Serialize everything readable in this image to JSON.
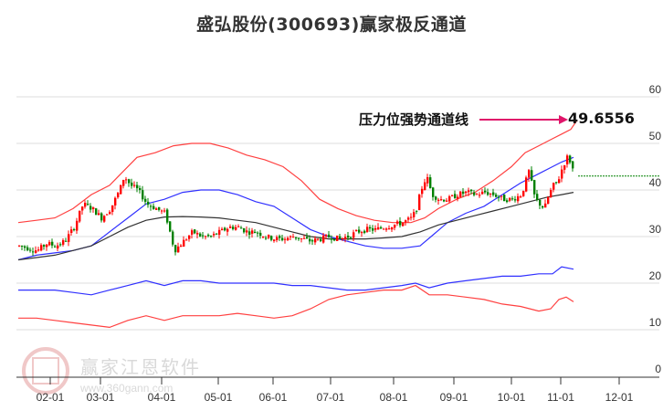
{
  "title": "盛弘股份(300693)赢家极反通道",
  "annotation": {
    "label": "压力位强势通道线",
    "value": "49.6556",
    "arrow_color": "#e0156a"
  },
  "watermark": {
    "brand": "赢家江恩软件",
    "url": "www.360gann.com",
    "logo_chars": [
      "江",
      "赢",
      "恩",
      "家"
    ]
  },
  "colors": {
    "up": "#ff0000",
    "down": "#008000",
    "outer_band": "#ff4040",
    "inner_band": "#3030ff",
    "mid_line": "#333333",
    "grid": "#dddddd",
    "last_price_line": "#008000"
  },
  "chart_data": {
    "type": "candlestick",
    "title": "盛弘股份(300693)赢家极反通道",
    "xlabel": "",
    "ylabel": "",
    "ylim": [
      0,
      60
    ],
    "y_ticks": [
      0,
      10,
      20,
      30,
      40,
      50,
      60
    ],
    "x_ticks": [
      "02-01",
      "03-01",
      "04-01",
      "05-01",
      "06-01",
      "07-01",
      "08-01",
      "09-01",
      "10-01",
      "11-01",
      "12-01"
    ],
    "grid": true,
    "legend": "none",
    "annotations": [
      {
        "text": "压力位强势通道线",
        "value": 49.6556,
        "type": "arrow"
      }
    ],
    "last_close": 43,
    "price_path": [
      [
        20,
        28
      ],
      [
        30,
        27.5
      ],
      [
        40,
        27
      ],
      [
        50,
        28.5
      ],
      [
        60,
        28
      ],
      [
        70,
        29
      ],
      [
        80,
        32
      ],
      [
        90,
        37
      ],
      [
        100,
        36
      ],
      [
        110,
        34
      ],
      [
        120,
        36
      ],
      [
        130,
        40
      ],
      [
        135,
        43
      ],
      [
        142,
        41
      ],
      [
        150,
        40
      ],
      [
        160,
        37
      ],
      [
        170,
        36
      ],
      [
        180,
        35
      ],
      [
        185,
        31
      ],
      [
        190,
        27
      ],
      [
        200,
        29
      ],
      [
        210,
        31
      ],
      [
        220,
        30
      ],
      [
        230,
        30
      ],
      [
        240,
        31
      ],
      [
        250,
        32
      ],
      [
        260,
        32
      ],
      [
        270,
        31
      ],
      [
        280,
        31
      ],
      [
        290,
        30
      ],
      [
        300,
        29.5
      ],
      [
        310,
        29.5
      ],
      [
        320,
        30
      ],
      [
        330,
        29.5
      ],
      [
        340,
        29
      ],
      [
        350,
        29.5
      ],
      [
        360,
        30
      ],
      [
        370,
        29.5
      ],
      [
        380,
        30
      ],
      [
        390,
        31
      ],
      [
        400,
        31.5
      ],
      [
        410,
        31.5
      ],
      [
        420,
        32
      ],
      [
        430,
        32.5
      ],
      [
        440,
        33
      ],
      [
        450,
        34
      ],
      [
        455,
        36
      ],
      [
        460,
        40
      ],
      [
        466,
        43
      ],
      [
        472,
        39
      ],
      [
        480,
        38
      ],
      [
        490,
        38
      ],
      [
        500,
        39
      ],
      [
        510,
        39.5
      ],
      [
        520,
        39
      ],
      [
        530,
        39.5
      ],
      [
        540,
        39
      ],
      [
        550,
        38
      ],
      [
        560,
        38
      ],
      [
        570,
        39
      ],
      [
        578,
        44
      ],
      [
        585,
        38
      ],
      [
        590,
        37
      ],
      [
        595,
        36
      ],
      [
        600,
        39
      ],
      [
        605,
        41
      ],
      [
        610,
        42
      ],
      [
        615,
        45
      ],
      [
        620,
        47
      ],
      [
        624,
        46
      ],
      [
        628,
        43
      ]
    ],
    "series": [
      {
        "name": "outer_upper",
        "color": "#ff4040",
        "points": [
          [
            20,
            33
          ],
          [
            40,
            33.5
          ],
          [
            60,
            34
          ],
          [
            80,
            36
          ],
          [
            100,
            39
          ],
          [
            120,
            41
          ],
          [
            135,
            44
          ],
          [
            150,
            47
          ],
          [
            170,
            48
          ],
          [
            190,
            49.5
          ],
          [
            210,
            50
          ],
          [
            230,
            50
          ],
          [
            250,
            49
          ],
          [
            270,
            47.5
          ],
          [
            290,
            46.5
          ],
          [
            310,
            45
          ],
          [
            330,
            42
          ],
          [
            350,
            38
          ],
          [
            370,
            36
          ],
          [
            390,
            34.5
          ],
          [
            410,
            33.5
          ],
          [
            430,
            33
          ],
          [
            450,
            33
          ],
          [
            465,
            34
          ],
          [
            480,
            36
          ],
          [
            500,
            38
          ],
          [
            520,
            39.5
          ],
          [
            540,
            42
          ],
          [
            560,
            45
          ],
          [
            575,
            48
          ],
          [
            590,
            49.5
          ],
          [
            605,
            51
          ],
          [
            615,
            52
          ],
          [
            625,
            53
          ],
          [
            632,
            55
          ]
        ]
      },
      {
        "name": "inner_upper",
        "color": "#3030ff",
        "points": [
          [
            20,
            25
          ],
          [
            40,
            26
          ],
          [
            60,
            26.5
          ],
          [
            80,
            27
          ],
          [
            100,
            28
          ],
          [
            120,
            31
          ],
          [
            140,
            34
          ],
          [
            160,
            37
          ],
          [
            180,
            38
          ],
          [
            200,
            39.5
          ],
          [
            220,
            40
          ],
          [
            240,
            40
          ],
          [
            260,
            39
          ],
          [
            280,
            37.5
          ],
          [
            300,
            36.5
          ],
          [
            320,
            34
          ],
          [
            340,
            31.5
          ],
          [
            360,
            30
          ],
          [
            380,
            29
          ],
          [
            400,
            28
          ],
          [
            420,
            27.5
          ],
          [
            440,
            27.5
          ],
          [
            460,
            28
          ],
          [
            475,
            30.5
          ],
          [
            490,
            33
          ],
          [
            510,
            35
          ],
          [
            530,
            36.5
          ],
          [
            550,
            39
          ],
          [
            570,
            41.5
          ],
          [
            590,
            43.5
          ],
          [
            605,
            45
          ],
          [
            615,
            46
          ],
          [
            628,
            47
          ]
        ]
      },
      {
        "name": "middle",
        "color": "#333333",
        "points": [
          [
            20,
            25
          ],
          [
            40,
            25.5
          ],
          [
            60,
            26
          ],
          [
            80,
            27
          ],
          [
            100,
            28
          ],
          [
            120,
            30
          ],
          [
            140,
            32
          ],
          [
            160,
            33.5
          ],
          [
            180,
            34.2
          ],
          [
            200,
            34.3
          ],
          [
            220,
            34.2
          ],
          [
            240,
            34
          ],
          [
            260,
            33.5
          ],
          [
            280,
            33
          ],
          [
            300,
            32
          ],
          [
            320,
            31
          ],
          [
            340,
            30
          ],
          [
            360,
            29.5
          ],
          [
            380,
            29.5
          ],
          [
            400,
            29.5
          ],
          [
            420,
            29.7
          ],
          [
            440,
            30
          ],
          [
            460,
            31
          ],
          [
            480,
            32.5
          ],
          [
            500,
            33.5
          ],
          [
            520,
            34.5
          ],
          [
            540,
            35.5
          ],
          [
            560,
            36.5
          ],
          [
            580,
            37.5
          ],
          [
            600,
            38.5
          ],
          [
            615,
            39
          ],
          [
            628,
            39.5
          ]
        ]
      },
      {
        "name": "inner_lower",
        "color": "#3030ff",
        "points": [
          [
            20,
            18.5
          ],
          [
            40,
            18.5
          ],
          [
            60,
            18.5
          ],
          [
            80,
            18
          ],
          [
            100,
            17.5
          ],
          [
            120,
            18.5
          ],
          [
            140,
            19.5
          ],
          [
            160,
            20.5
          ],
          [
            180,
            19.5
          ],
          [
            200,
            20.5
          ],
          [
            220,
            20.5
          ],
          [
            240,
            20
          ],
          [
            260,
            20
          ],
          [
            280,
            20
          ],
          [
            300,
            20
          ],
          [
            320,
            19.5
          ],
          [
            340,
            19.5
          ],
          [
            360,
            19
          ],
          [
            380,
            18.5
          ],
          [
            400,
            18.5
          ],
          [
            420,
            19
          ],
          [
            440,
            19.5
          ],
          [
            455,
            20
          ],
          [
            470,
            19
          ],
          [
            490,
            20
          ],
          [
            510,
            20.5
          ],
          [
            530,
            21
          ],
          [
            550,
            21.5
          ],
          [
            570,
            21.5
          ],
          [
            590,
            22
          ],
          [
            605,
            22
          ],
          [
            615,
            23.5
          ],
          [
            628,
            23
          ]
        ]
      },
      {
        "name": "outer_lower",
        "color": "#ff4040",
        "points": [
          [
            20,
            12.5
          ],
          [
            40,
            12.5
          ],
          [
            60,
            12
          ],
          [
            80,
            11.5
          ],
          [
            100,
            11
          ],
          [
            120,
            10.5
          ],
          [
            140,
            12
          ],
          [
            160,
            13
          ],
          [
            180,
            12
          ],
          [
            200,
            13
          ],
          [
            220,
            13
          ],
          [
            240,
            13
          ],
          [
            260,
            13.5
          ],
          [
            280,
            13
          ],
          [
            300,
            12.5
          ],
          [
            320,
            13
          ],
          [
            340,
            14.5
          ],
          [
            360,
            16.5
          ],
          [
            380,
            17.5
          ],
          [
            400,
            18
          ],
          [
            420,
            18.5
          ],
          [
            440,
            18.5
          ],
          [
            455,
            19.5
          ],
          [
            470,
            17.5
          ],
          [
            490,
            17.5
          ],
          [
            510,
            17
          ],
          [
            530,
            16.5
          ],
          [
            550,
            15.5
          ],
          [
            570,
            15
          ],
          [
            590,
            14
          ],
          [
            603,
            14.5
          ],
          [
            612,
            16.5
          ],
          [
            620,
            17
          ],
          [
            628,
            16
          ]
        ]
      }
    ]
  },
  "axis": {
    "y_labels": [
      "60",
      "50",
      "40",
      "30",
      "20",
      "10",
      "0"
    ],
    "x_labels": [
      "02-01",
      "03-01",
      "04-01",
      "05-01",
      "06-01",
      "07-01",
      "08-01",
      "09-01",
      "10-01",
      "11-01",
      "12-01"
    ]
  }
}
